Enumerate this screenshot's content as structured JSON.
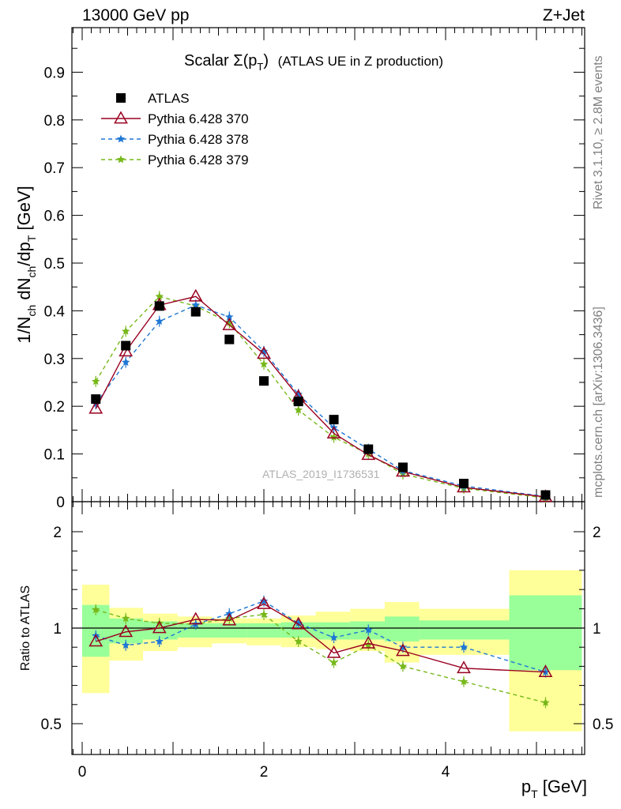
{
  "header": {
    "left": "13000 GeV pp",
    "right": "Z+Jet",
    "title_main": "Scalar Σ(p",
    "title_sub": "T",
    "title_end": ")",
    "title_rest": "(ATLAS UE in Z production)"
  },
  "side_labels": {
    "rivet": "Rivet 3.1.10, ≥ 2.8M events",
    "mcplots": "mcplots.cern.ch [arXiv:1306.3436]"
  },
  "watermark": "ATLAS_2019_I1736531",
  "top_ylabel": {
    "prefix": "1/N",
    "ch1": "ch",
    "mid": " dN",
    "ch2": "ch",
    "mid2": "/dp",
    "t": "T",
    "unit": " [GeV]"
  },
  "bottom_ylabel": "Ratio to ATLAS",
  "xlabel": {
    "p": "p",
    "t": "T",
    "unit": " [GeV]"
  },
  "colors": {
    "data": "#000000",
    "p370": "#990020",
    "p378": "#1f77d4",
    "p379": "#77b81a",
    "band_inner": "#99ff99",
    "band_outer": "#ffff99"
  },
  "chart_data": [
    {
      "type": "scatter",
      "panel": "main",
      "ylim": [
        0,
        1.0
      ],
      "xlim": [
        -0.2,
        5.55
      ],
      "yticks": [
        "0",
        "0.1",
        "0.2",
        "0.3",
        "0.4",
        "0.5",
        "0.6",
        "0.7",
        "0.8",
        "0.9"
      ],
      "x": [
        0.15,
        0.48,
        0.85,
        1.25,
        1.62,
        2.0,
        2.38,
        2.77,
        3.15,
        3.53,
        4.2,
        5.1
      ],
      "series": [
        {
          "name": "ATLAS",
          "values": [
            0.215,
            0.327,
            0.41,
            0.398,
            0.34,
            0.253,
            0.21,
            0.172,
            0.11,
            0.072,
            0.038,
            0.014
          ]
        },
        {
          "name": "Pythia 6.428 370",
          "values": [
            0.195,
            0.315,
            0.412,
            0.43,
            0.37,
            0.31,
            0.22,
            0.143,
            0.098,
            0.063,
            0.03,
            0.01
          ]
        },
        {
          "name": "Pythia 6.428 378",
          "values": [
            0.205,
            0.292,
            0.378,
            0.412,
            0.387,
            0.315,
            0.225,
            0.155,
            0.11,
            0.065,
            0.033,
            0.011
          ]
        },
        {
          "name": "Pythia 6.428 379",
          "values": [
            0.252,
            0.357,
            0.43,
            0.41,
            0.375,
            0.288,
            0.192,
            0.135,
            0.1,
            0.058,
            0.028,
            0.008
          ]
        }
      ],
      "legend": [
        "ATLAS",
        "Pythia 6.428 370",
        "Pythia 6.428 378",
        "Pythia 6.428 379"
      ]
    },
    {
      "type": "line",
      "panel": "ratio",
      "ylim": [
        0.35,
        2.35
      ],
      "yticks": [
        "0.5",
        "1",
        "2"
      ],
      "xticks": [
        "0",
        "2",
        "4"
      ],
      "bins": [
        [
          0,
          0.3
        ],
        [
          0.3,
          0.67
        ],
        [
          0.67,
          1.05
        ],
        [
          1.05,
          1.43
        ],
        [
          1.43,
          1.81
        ],
        [
          1.81,
          2.19
        ],
        [
          2.19,
          2.57
        ],
        [
          2.57,
          2.95
        ],
        [
          2.95,
          3.33
        ],
        [
          3.33,
          3.71
        ],
        [
          3.71,
          4.7
        ],
        [
          4.7,
          5.5
        ]
      ],
      "band_inner": [
        [
          0.85,
          1.24
        ],
        [
          0.92,
          1.1
        ],
        [
          0.94,
          1.07
        ],
        [
          0.95,
          1.05
        ],
        [
          0.95,
          1.05
        ],
        [
          0.95,
          1.05
        ],
        [
          0.95,
          1.06
        ],
        [
          0.94,
          1.06
        ],
        [
          0.94,
          1.07
        ],
        [
          0.93,
          1.12
        ],
        [
          0.94,
          1.08
        ],
        [
          0.78,
          1.34
        ]
      ],
      "band_outer": [
        [
          0.66,
          1.45
        ],
        [
          0.83,
          1.21
        ],
        [
          0.88,
          1.15
        ],
        [
          0.9,
          1.12
        ],
        [
          0.92,
          1.1
        ],
        [
          0.91,
          1.1
        ],
        [
          0.9,
          1.13
        ],
        [
          0.89,
          1.17
        ],
        [
          0.88,
          1.2
        ],
        [
          0.82,
          1.27
        ],
        [
          0.86,
          1.2
        ],
        [
          0.46,
          1.6
        ]
      ],
      "x": [
        0.15,
        0.48,
        0.85,
        1.25,
        1.62,
        2.0,
        2.38,
        2.77,
        3.15,
        3.53,
        4.2,
        5.1
      ],
      "series": [
        {
          "name": "Pythia 6.428 370",
          "values": [
            0.93,
            0.98,
            1.0,
            1.09,
            1.08,
            1.25,
            1.04,
            0.87,
            0.92,
            0.88,
            0.79,
            0.77
          ]
        },
        {
          "name": "Pythia 6.428 378",
          "values": [
            0.96,
            0.91,
            0.93,
            1.04,
            1.15,
            1.28,
            1.05,
            0.95,
            0.99,
            0.9,
            0.9,
            0.77
          ]
        },
        {
          "name": "Pythia 6.428 379",
          "values": [
            1.19,
            1.1,
            1.05,
            1.04,
            1.1,
            1.14,
            0.93,
            0.82,
            0.91,
            0.8,
            0.72,
            0.61
          ]
        }
      ]
    }
  ]
}
